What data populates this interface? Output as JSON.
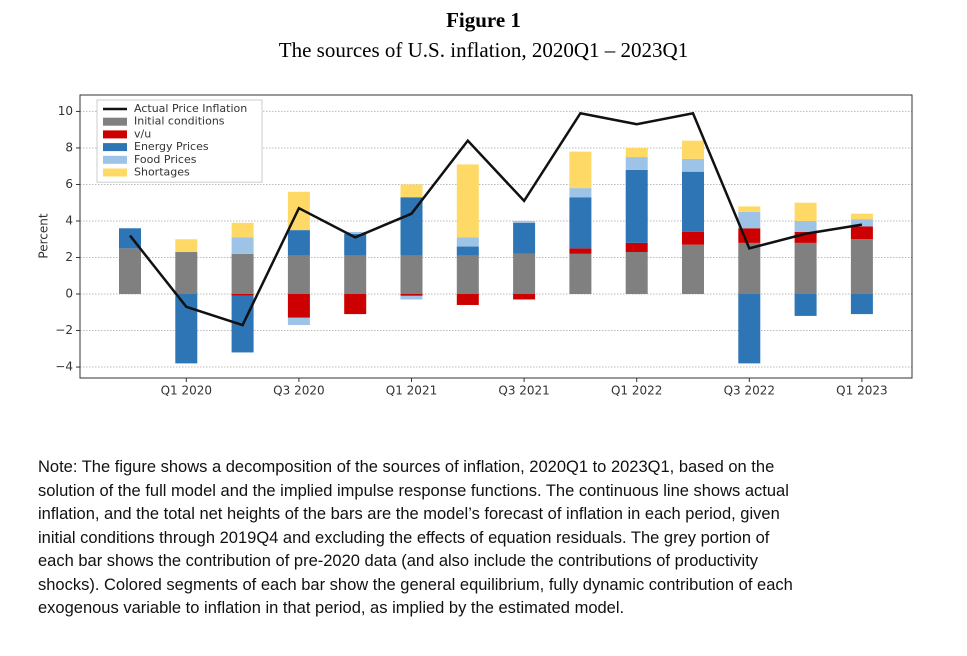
{
  "header": {
    "label": "Figure 1",
    "title": "The sources of U.S. inflation, 2020Q1 – 2023Q1"
  },
  "chart_data": {
    "type": "bar",
    "stacked": true,
    "y_label": "Percent",
    "categories": [
      null,
      "Q1 2020",
      null,
      "Q3 2020",
      null,
      "Q1 2021",
      null,
      "Q3 2021",
      null,
      "Q1 2022",
      null,
      "Q3 2022",
      null,
      "Q1 2023"
    ],
    "ylim": [
      -4.6,
      10.9
    ],
    "yticks": [
      {
        "value": -4,
        "label": "−4"
      },
      {
        "value": -2,
        "label": "−2"
      },
      0,
      2,
      4,
      6,
      8,
      10
    ],
    "grid": true,
    "legend": "upper left",
    "series": [
      {
        "name": "Actual Price Inflation",
        "type": "line",
        "color": "#111111",
        "values": [
          3.2,
          -0.7,
          -1.7,
          4.7,
          3.1,
          4.4,
          8.4,
          5.1,
          9.9,
          9.3,
          9.9,
          2.5,
          3.3,
          3.8
        ]
      },
      {
        "name": "Initial conditions",
        "color": "#808080",
        "values": [
          2.5,
          2.3,
          2.2,
          2.1,
          2.1,
          2.1,
          2.1,
          2.2,
          2.2,
          2.3,
          2.7,
          2.8,
          2.8,
          3.0
        ]
      },
      {
        "name": "v/u",
        "color": "#cc0000",
        "values": [
          0,
          0,
          -0.1,
          -1.3,
          -1.1,
          -0.1,
          -0.6,
          -0.3,
          0.3,
          0.5,
          0.7,
          0.8,
          0.6,
          0.7
        ]
      },
      {
        "name": "Energy Prices",
        "color": "#2e75b6",
        "values": [
          1.1,
          -3.8,
          -3.1,
          1.4,
          1.2,
          3.2,
          0.5,
          1.7,
          2.8,
          4.0,
          3.3,
          -3.8,
          -1.2,
          -1.1
        ]
      },
      {
        "name": "Food Prices",
        "color": "#9dc3e6",
        "values": [
          0,
          0,
          0.9,
          -0.4,
          0.1,
          -0.2,
          0.5,
          0.1,
          0.5,
          0.7,
          0.7,
          0.9,
          0.6,
          0.4
        ]
      },
      {
        "name": "Shortages",
        "color": "#ffd966",
        "values": [
          0,
          0.7,
          0.8,
          2.1,
          0,
          0.7,
          4.0,
          0,
          2.0,
          0.5,
          1.0,
          0.3,
          1.0,
          0.3
        ]
      }
    ]
  },
  "note": [
    "Note: The figure shows a decomposition of the sources of inflation, 2020Q1 to 2023Q1, based on the",
    "solution of the full model and the implied impulse response functions. The continuous line shows actual",
    "inflation, and the total net heights of the bars are the model’s forecast of inflation in each period, given",
    "initial conditions through 2019Q4 and excluding the effects of equation residuals. The grey portion of",
    "each bar shows the contribution of pre-2020 data (and also include the contributions of productivity",
    "shocks). Colored segments of each bar show the general equilibrium, fully dynamic contribution of each",
    "exogenous variable to inflation in that period, as implied by the estimated model."
  ]
}
